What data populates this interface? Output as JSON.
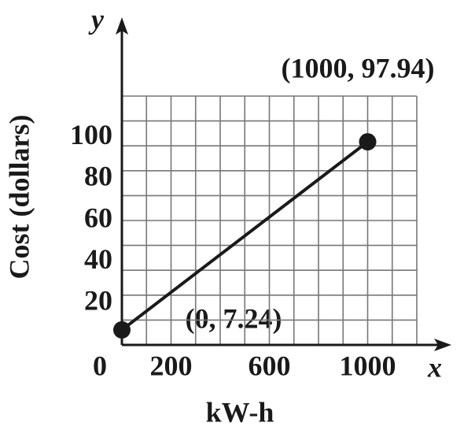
{
  "chart_data": {
    "type": "line",
    "x_label": "kW-h",
    "y_label": "Cost (dollars)",
    "x_axis_name": "x",
    "y_axis_name": "y",
    "x": [
      0,
      1000
    ],
    "series": [
      {
        "values": [
          7.24,
          97.94
        ],
        "color": "#1a1a1a"
      }
    ],
    "annotations": [
      "(0, 7.24)",
      "(1000, 97.94)"
    ],
    "xlim": [
      0,
      1200
    ],
    "ylim": [
      0,
      120
    ],
    "xticks": [
      0,
      200,
      600,
      1000
    ],
    "yticks": [
      20,
      40,
      60,
      80,
      100
    ],
    "grid": true
  }
}
